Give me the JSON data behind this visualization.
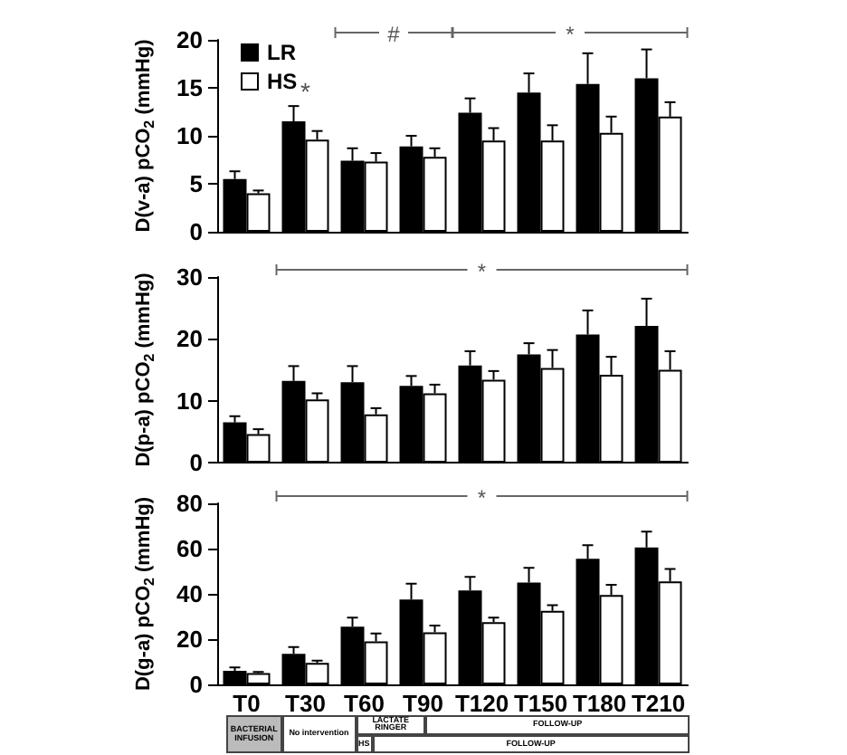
{
  "chart_data": [
    {
      "type": "bar",
      "ylabel": "D(v-a) pCO$_{2}$ (mmHg)",
      "categories": [
        null,
        null,
        null,
        null,
        null,
        null,
        null,
        null
      ],
      "ylim": [
        0,
        20
      ],
      "yticks": [
        0,
        5,
        10,
        15,
        20
      ],
      "tick_labels": "y",
      "legend": "top left",
      "grid": false,
      "series": [
        {
          "name": "LR",
          "color": "#000000",
          "values": [
            5.5,
            11.5,
            7.4,
            8.9,
            12.4,
            14.5,
            15.4,
            16.0
          ],
          "errors": [
            0.8,
            1.6,
            1.3,
            1.1,
            1.5,
            2.0,
            3.2,
            3.0
          ]
        },
        {
          "name": "HS",
          "color": "#ffffff",
          "values": [
            4.0,
            9.6,
            7.3,
            7.8,
            9.5,
            9.5,
            10.3,
            12.0
          ],
          "errors": [
            0.3,
            0.9,
            0.9,
            0.9,
            1.3,
            1.6,
            1.7,
            1.5
          ]
        }
      ],
      "annotations": [
        "*",
        "#",
        "*"
      ]
    },
    {
      "type": "bar",
      "ylabel": "D(p-a) pCO$_{2}$ (mmHg)",
      "categories": [
        null,
        null,
        null,
        null,
        null,
        null,
        null,
        null
      ],
      "ylim": [
        0,
        30
      ],
      "yticks": [
        0,
        10,
        20,
        30
      ],
      "tick_labels": "y",
      "legend": false,
      "grid": false,
      "series": [
        {
          "color": "#000000",
          "values": [
            6.5,
            13.2,
            13.0,
            12.4,
            15.7,
            17.5,
            20.7,
            22.1
          ],
          "errors": [
            1.0,
            2.4,
            2.6,
            1.6,
            2.3,
            1.8,
            3.9,
            4.4
          ]
        },
        {
          "color": "#ffffff",
          "values": [
            4.6,
            10.2,
            7.8,
            11.2,
            13.4,
            15.3,
            14.2,
            15.0
          ],
          "errors": [
            0.8,
            1.0,
            1.0,
            1.4,
            1.4,
            2.9,
            2.9,
            3.0
          ]
        }
      ],
      "annotations": [
        "*"
      ]
    },
    {
      "type": "bar",
      "ylabel": "D(g-a) pCO$_{2}$ (mmHg)",
      "categories": [
        "T0",
        "T30",
        "T60",
        "T90",
        "T120",
        "T150",
        "T180",
        "T210"
      ],
      "ylim": [
        0,
        80
      ],
      "yticks": [
        0,
        20,
        40,
        60,
        80
      ],
      "legend": false,
      "grid": false,
      "series": [
        {
          "color": "#000000",
          "values": [
            6,
            13.5,
            25.5,
            37.5,
            41.5,
            45,
            55.5,
            60.5
          ],
          "errors": [
            1.5,
            3,
            4,
            7,
            6,
            6.5,
            6,
            7
          ]
        },
        {
          "color": "#ffffff",
          "values": [
            5,
            9.5,
            19,
            23,
            27.5,
            32.5,
            39.5,
            45.5
          ],
          "errors": [
            0.5,
            1,
            3.5,
            3,
            2,
            2.5,
            4.5,
            5.5
          ]
        }
      ],
      "annotations": [
        "*",
        "BACTERIAL INFUSION",
        "No intervention",
        "LACTATE RINGER",
        "FOLLOW-UP",
        "HS",
        "FOLLOW-UP"
      ]
    }
  ]
}
